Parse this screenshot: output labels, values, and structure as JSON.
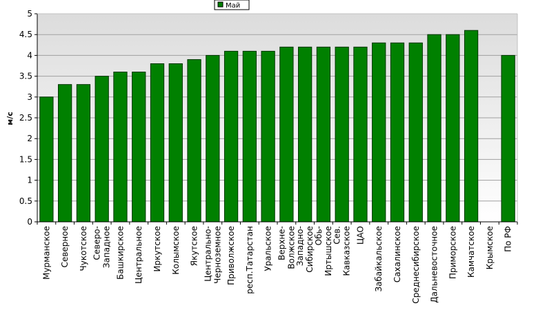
{
  "chart_data": {
    "type": "bar",
    "title": "",
    "xlabel": "",
    "ylabel": "м/с",
    "ylim": [
      0,
      5
    ],
    "yticks": [
      "0",
      "0.5",
      "1",
      "1.5",
      "2",
      "2.5",
      "3",
      "3.5",
      "4",
      "4.5",
      "5"
    ],
    "grid": "horizontal",
    "legend": {
      "placement": "top-center",
      "entries": [
        "Май"
      ]
    },
    "colors": {
      "bar": "#008000",
      "bar_border": "#003300",
      "plot_top": "#dcdcdc",
      "plot_bottom": "#ffffff"
    },
    "categories": [
      [
        "Мурманское"
      ],
      [
        "Северное"
      ],
      [
        "Чукотское"
      ],
      [
        "Северо-",
        "Западное"
      ],
      [
        "Башкирское"
      ],
      [
        "Центральное"
      ],
      [
        "Иркутское"
      ],
      [
        "Колымское"
      ],
      [
        "Якутское"
      ],
      [
        "Центрально-",
        "Черноземное"
      ],
      [
        "Приволжское"
      ],
      [
        "респ.Татарстан"
      ],
      [
        "Уральское"
      ],
      [
        "Верхне-",
        "Волжское"
      ],
      [
        "Западно-",
        "Сибирское"
      ],
      [
        "Обь-",
        "Иртышское"
      ],
      [
        "Сев.",
        "Кавказское"
      ],
      [
        "ЦАО"
      ],
      [
        "Забайкальское"
      ],
      [
        "Сахалинское"
      ],
      [
        "Среднесибирское"
      ],
      [
        "Дальневосточное"
      ],
      [
        "Приморское"
      ],
      [
        "Камчатское"
      ],
      [
        "Крымское"
      ],
      [
        "По РФ"
      ]
    ],
    "series": [
      {
        "name": "Май",
        "values": [
          3.0,
          3.3,
          3.3,
          3.5,
          3.6,
          3.6,
          3.8,
          3.8,
          3.9,
          4.0,
          4.1,
          4.1,
          4.1,
          4.2,
          4.2,
          4.2,
          4.2,
          4.2,
          4.3,
          4.3,
          4.3,
          4.5,
          4.5,
          4.6,
          null,
          4.0
        ]
      }
    ]
  }
}
